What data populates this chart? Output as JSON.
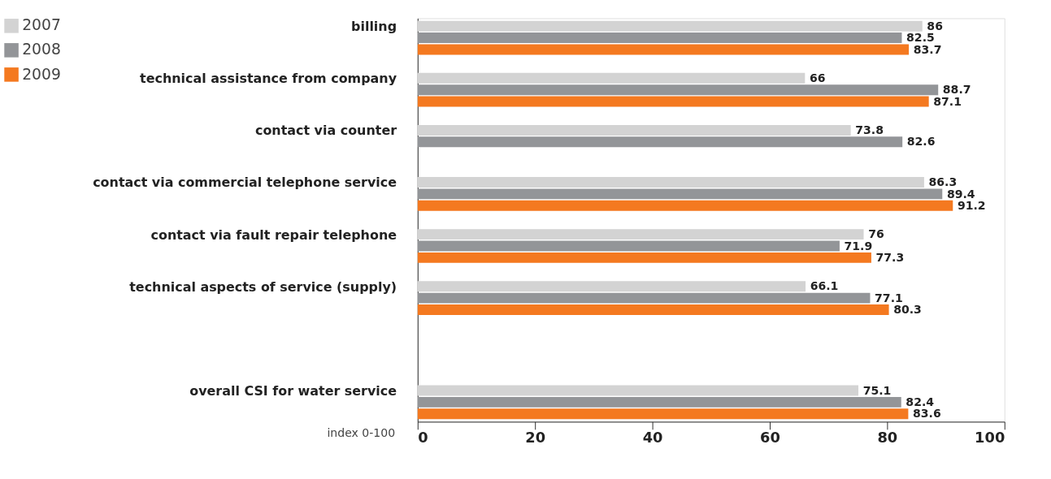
{
  "chart_data": {
    "type": "bar",
    "orientation": "horizontal",
    "xlabel": "index 0-100",
    "categories": [
      "billing",
      "technical assistance from company",
      "contact via counter",
      "contact via commercial telephone service",
      "contact via fault repair telephone",
      "technical aspects of service (supply)",
      null,
      "overall CSI for water service"
    ],
    "series": [
      {
        "name": "2007",
        "color": "#d3d3d3",
        "values": [
          86,
          66,
          73.8,
          86.3,
          76,
          66.1,
          null,
          75.1
        ]
      },
      {
        "name": "2008",
        "color": "#939598",
        "values": [
          82.5,
          88.7,
          82.6,
          89.4,
          71.9,
          77.1,
          null,
          82.4
        ]
      },
      {
        "name": "2009",
        "color": "#f47920",
        "values": [
          83.7,
          87.1,
          null,
          91.2,
          77.3,
          80.3,
          null,
          83.6
        ]
      }
    ],
    "xlim": [
      0,
      100
    ],
    "xticks": [
      0,
      20,
      40,
      60,
      80,
      100
    ],
    "data_labels": true,
    "legend": "top left",
    "grid": false
  }
}
